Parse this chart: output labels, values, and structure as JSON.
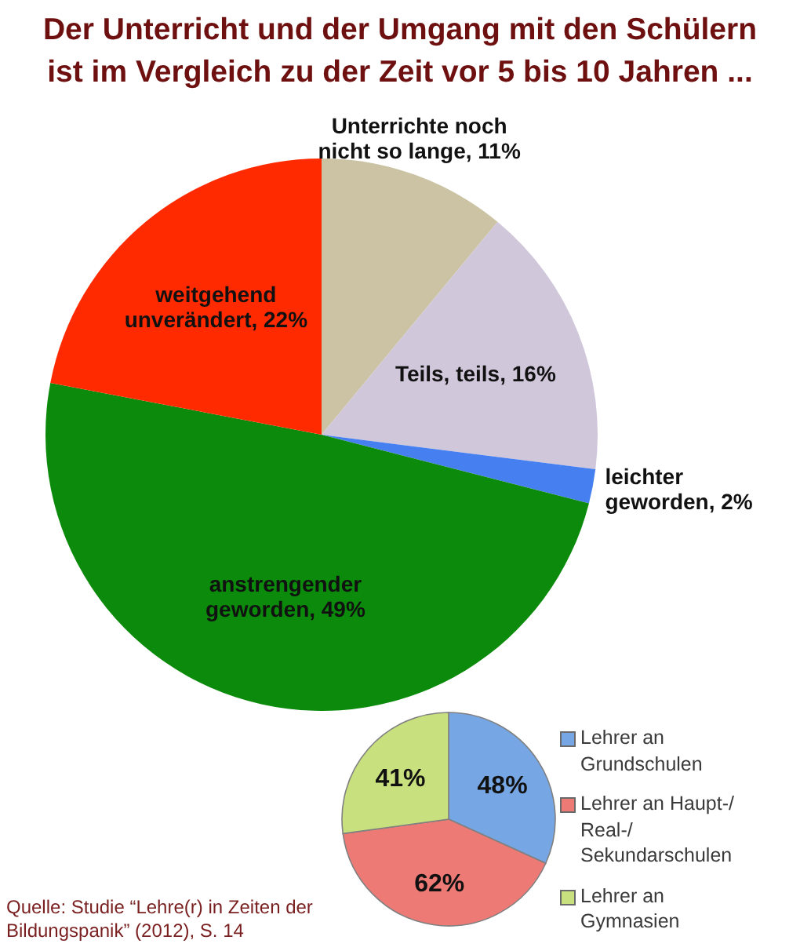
{
  "chart_data": [
    {
      "type": "pie",
      "title": "Der Unterricht und der Umgang mit den Schülern ist im Vergleich zu der Zeit vor 5 bis 10 Jahren ...",
      "categories": [
        "Unterrichte noch nicht so lange",
        "Teils, teils",
        "leichter geworden",
        "anstrengender geworden",
        "weitgehend unverändert"
      ],
      "values": [
        11,
        16,
        2,
        49,
        22
      ],
      "colors": [
        "#cbc3a3",
        "#d0c7db",
        "#4680f0",
        "#0b8a0b",
        "#ff2a00"
      ],
      "value_labels": [
        "11%",
        "16%",
        "2%",
        "49%",
        "22%"
      ],
      "legend": false,
      "annotations": [
        "Quelle: Studie “Lehre(r) in Zeiten der Bildungspanik” (2012), S. 14"
      ]
    },
    {
      "type": "pie",
      "categories": [
        "Lehrer an Grundschulen",
        "Lehrer an Haupt-/ Real-/ Sekundarschulen",
        "Lehrer an Gymnasien"
      ],
      "values": [
        48,
        62,
        41
      ],
      "colors": [
        "#76a6e4",
        "#ee7a76",
        "#c9e07e"
      ],
      "value_labels": [
        "48%",
        "62%",
        "41%"
      ],
      "legend": "right"
    }
  ]
}
